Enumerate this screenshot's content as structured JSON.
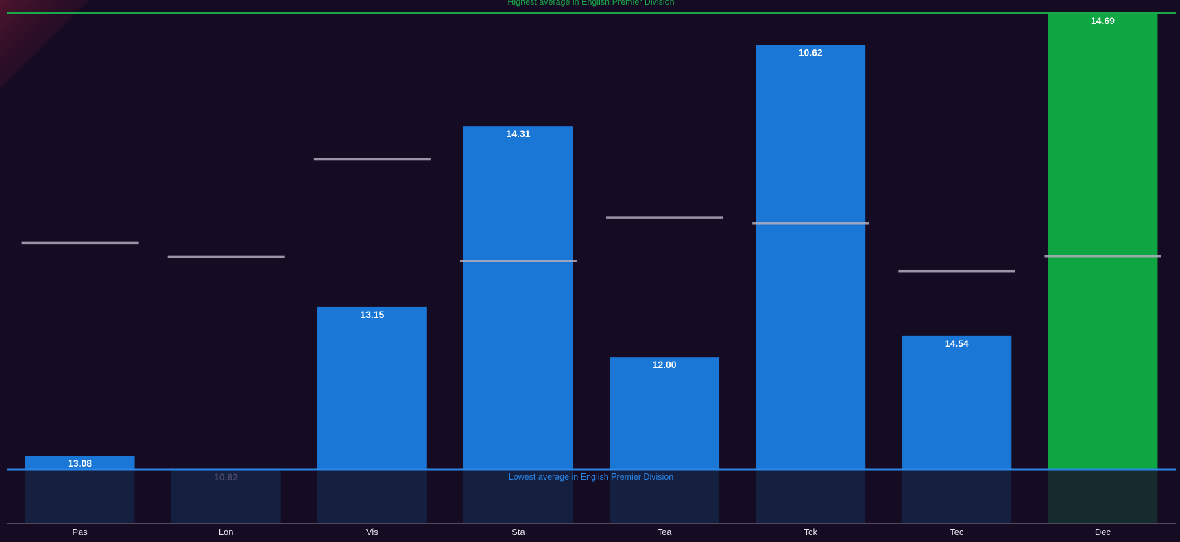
{
  "chart_data": {
    "type": "bar",
    "title": "",
    "xlabel": "",
    "ylabel": "",
    "ylim": [
      10.62,
      14.69
    ],
    "categories": [
      "Pas",
      "Lon",
      "Vis",
      "Sta",
      "Tea",
      "Tck",
      "Tec",
      "Dec"
    ],
    "series": [
      {
        "values": [
          13.08,
          10.62,
          13.15,
          14.31,
          12.0,
          10.62,
          14.54,
          14.69
        ],
        "bar_fill": [
          0.03,
          0.0,
          0.356,
          0.752,
          0.246,
          0.93,
          0.293,
          1.0
        ],
        "label_dimmed": [
          false,
          true,
          false,
          false,
          false,
          false,
          false,
          false
        ],
        "highlight": [
          false,
          false,
          false,
          false,
          false,
          false,
          false,
          true
        ]
      }
    ],
    "comparison_marks": [
      0.496,
      0.466,
      0.679,
      0.456,
      0.552,
      0.539,
      0.434,
      0.467
    ],
    "reference_lines": {
      "max": {
        "label": "Highest average in English Premier Division",
        "value": 14.69,
        "color": "#19a94a"
      },
      "min": {
        "label": "Lowest average in English Premier Division",
        "value": 10.62,
        "color": "#2a86e8"
      }
    },
    "grid": false,
    "legend": "none",
    "colors": {
      "bar": "#1a77d6",
      "bar_highlight": "#0ea543",
      "under_bar": "#152041",
      "under_bar_highlight": "#152b2d",
      "comparison_mark": "#b2adbd",
      "axis": "#8a8799"
    }
  }
}
